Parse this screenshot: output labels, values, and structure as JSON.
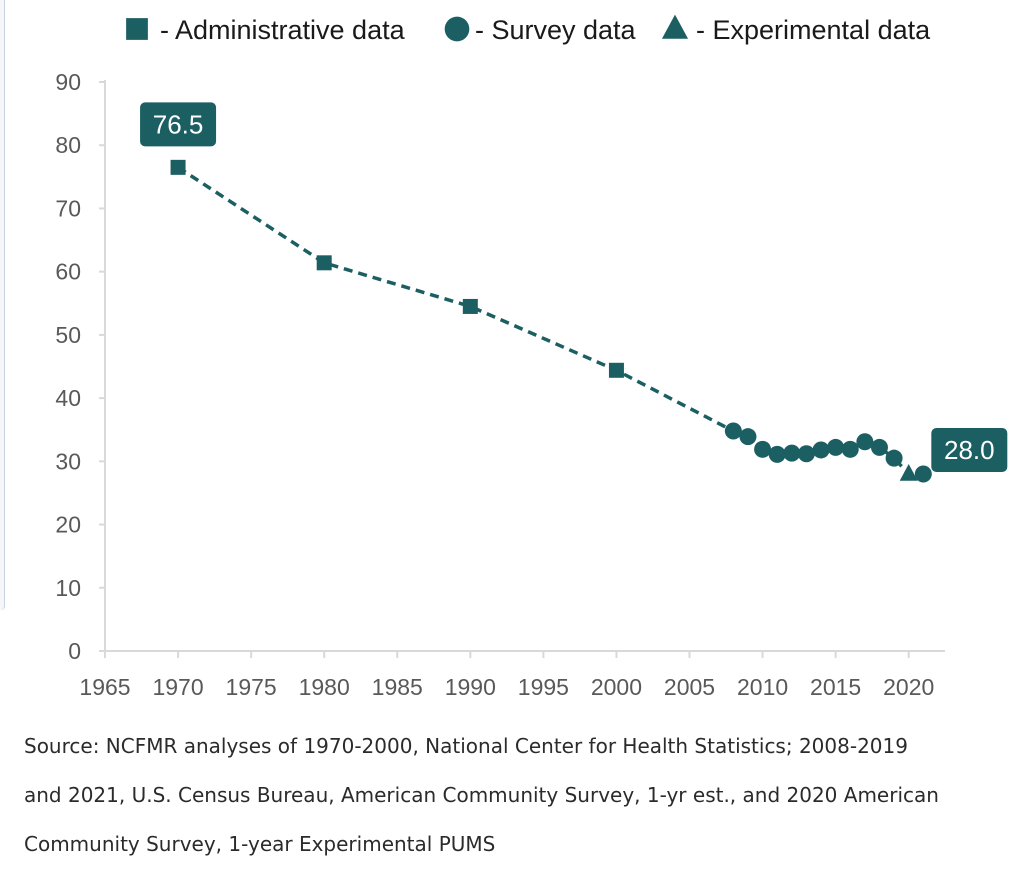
{
  "chart_data": {
    "type": "line",
    "title": "",
    "xlabel": "",
    "ylabel": "",
    "xlim": [
      1965,
      2022
    ],
    "ylim": [
      0,
      90
    ],
    "x_ticks": [
      "1965",
      "1970",
      "1975",
      "1980",
      "1985",
      "1990",
      "1995",
      "2000",
      "2005",
      "2010",
      "2015",
      "2020"
    ],
    "y_ticks": [
      "0",
      "10",
      "20",
      "30",
      "40",
      "50",
      "60",
      "70",
      "80",
      "90"
    ],
    "grid": false,
    "legend_position": "top",
    "line_style": "dashed",
    "color": "#1c5f63",
    "legend": [
      {
        "marker": "square",
        "label": "- Administrative data"
      },
      {
        "marker": "circle",
        "label": "- Survey data"
      },
      {
        "marker": "triangle",
        "label": "- Experimental data"
      }
    ],
    "series": [
      {
        "name": "Administrative data",
        "marker": "square",
        "points": [
          {
            "x": 1970,
            "y": 76.5
          },
          {
            "x": 1980,
            "y": 61.4
          },
          {
            "x": 1990,
            "y": 54.5
          },
          {
            "x": 2000,
            "y": 44.4
          }
        ]
      },
      {
        "name": "Survey data",
        "marker": "circle",
        "points": [
          {
            "x": 2008,
            "y": 34.8
          },
          {
            "x": 2009,
            "y": 33.9
          },
          {
            "x": 2010,
            "y": 31.9
          },
          {
            "x": 2011,
            "y": 31.1
          },
          {
            "x": 2012,
            "y": 31.3
          },
          {
            "x": 2013,
            "y": 31.2
          },
          {
            "x": 2014,
            "y": 31.8
          },
          {
            "x": 2015,
            "y": 32.2
          },
          {
            "x": 2016,
            "y": 31.9
          },
          {
            "x": 2017,
            "y": 33.1
          },
          {
            "x": 2018,
            "y": 32.2
          },
          {
            "x": 2019,
            "y": 30.5
          },
          {
            "x": 2021,
            "y": 28.0
          }
        ]
      },
      {
        "name": "Experimental data",
        "marker": "triangle",
        "points": [
          {
            "x": 2020,
            "y": 28.0
          }
        ]
      }
    ],
    "annotations": [
      {
        "x": 1970,
        "y": 76.5,
        "text": "76.5",
        "side": "above"
      },
      {
        "x": 2021,
        "y": 28.0,
        "text": "28.0",
        "side": "right"
      }
    ]
  },
  "source_lines": [
    "Source: NCFMR analyses of 1970-2000, National Center for Health Statistics; 2008-2019",
    "and 2021, U.S. Census Bureau, American Community Survey, 1-yr est., and 2020 American",
    "Community Survey, 1-year Experimental PUMS"
  ]
}
